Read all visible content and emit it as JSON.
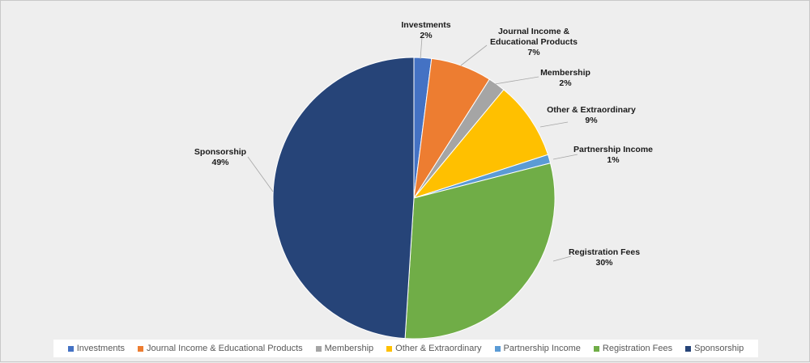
{
  "chart_data": {
    "type": "pie",
    "title": "",
    "slices": [
      {
        "label": "Investments",
        "value": 2,
        "value_label": "2%",
        "color": "#4472c4"
      },
      {
        "label": "Journal Income & Educational Products",
        "value": 7,
        "value_label": "7%",
        "color": "#ed7d31"
      },
      {
        "label": "Membership",
        "value": 2,
        "value_label": "2%",
        "color": "#a5a5a5"
      },
      {
        "label": "Other & Extraordinary",
        "value": 9,
        "value_label": "9%",
        "color": "#ffc000"
      },
      {
        "label": "Partnership Income",
        "value": 1,
        "value_label": "1%",
        "color": "#5b9bd5"
      },
      {
        "label": "Registration Fees",
        "value": 30,
        "value_label": "30%",
        "color": "#70ad47"
      },
      {
        "label": "Sponsorship",
        "value": 49,
        "value_label": "49%",
        "color": "#264478"
      }
    ],
    "data_label_lines": [
      [
        "Investments"
      ],
      [
        "Journal Income &",
        "Educational Products"
      ],
      [
        "Membership"
      ],
      [
        "Other & Extraordinary"
      ],
      [
        "Partnership Income"
      ],
      [
        "Registration Fees"
      ],
      [
        "Sponsorship"
      ]
    ],
    "legend_position": "bottom"
  }
}
